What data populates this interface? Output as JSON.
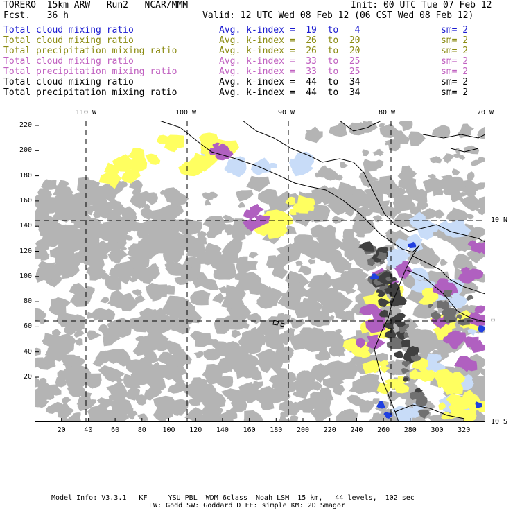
{
  "header": {
    "model_line": "TORERO  15km ARW   Run2   NCAR/MMM",
    "init_line": "Init: 00 UTC Tue 07 Feb 12",
    "fcst_line": "Fcst.   36 h",
    "valid_line": "Valid: 12 UTC Wed 08 Feb 12 (06 CST Wed 08 Feb 12)"
  },
  "legend": [
    {
      "field": "Total cloud mixing ratio",
      "index": "Avg. k-index =  19  to   4",
      "sm": "sm= 2",
      "color": "#1a1ad0"
    },
    {
      "field": "Total cloud mixing ratio",
      "index": "Avg. k-index =  26  to  20",
      "sm": "sm= 2",
      "color": "#8a8a10"
    },
    {
      "field": "Total precipitation mixing ratio",
      "index": "Avg. k-index =  26  to  20",
      "sm": "sm= 2",
      "color": "#8a8a10"
    },
    {
      "field": "Total cloud mixing ratio",
      "index": "Avg. k-index =  33  to  25",
      "sm": "sm= 2",
      "color": "#c060c0"
    },
    {
      "field": "Total precipitation mixing ratio",
      "index": "Avg. k-index =  33  to  25",
      "sm": "sm= 2",
      "color": "#c060c0"
    },
    {
      "field": "Total cloud mixing ratio",
      "index": "Avg. k-index =  44  to  34",
      "sm": "sm= 2",
      "color": "#000000"
    },
    {
      "field": "Total precipitation mixing ratio",
      "index": "Avg. k-index =  44  to  34",
      "sm": "sm= 2",
      "color": "#000000"
    }
  ],
  "map": {
    "top_lon_labels": [
      "110 W",
      "100 W",
      "90 W",
      "80 W",
      "70 W"
    ],
    "right_lat_labels": [
      "10 N",
      "0",
      "10 S"
    ],
    "left_grid_labels": [
      "220",
      "200",
      "180",
      "160",
      "140",
      "120",
      "100",
      "80",
      "60",
      "40",
      "20"
    ],
    "bottom_grid_labels": [
      "20",
      "40",
      "60",
      "80",
      "100",
      "120",
      "140",
      "160",
      "180",
      "200",
      "220",
      "240",
      "260",
      "280",
      "300",
      "320"
    ],
    "colors": {
      "grey_cloud": "#b4b4b4",
      "dark_cloud": "#404040",
      "yellow_precip": "#ffff60",
      "magenta": "#b060c0",
      "light_blue": "#c8dcf8",
      "blue": "#2040e0",
      "coast": "#000000"
    }
  },
  "footer": {
    "line1": "Model Info: V3.3.1   KF     YSU PBL  WDM 6class  Noah LSM  15 km,   44 levels,  102 sec",
    "line2": "LW: Godd SW: Goddard DIFF: simple KM: 2D Smagor"
  }
}
